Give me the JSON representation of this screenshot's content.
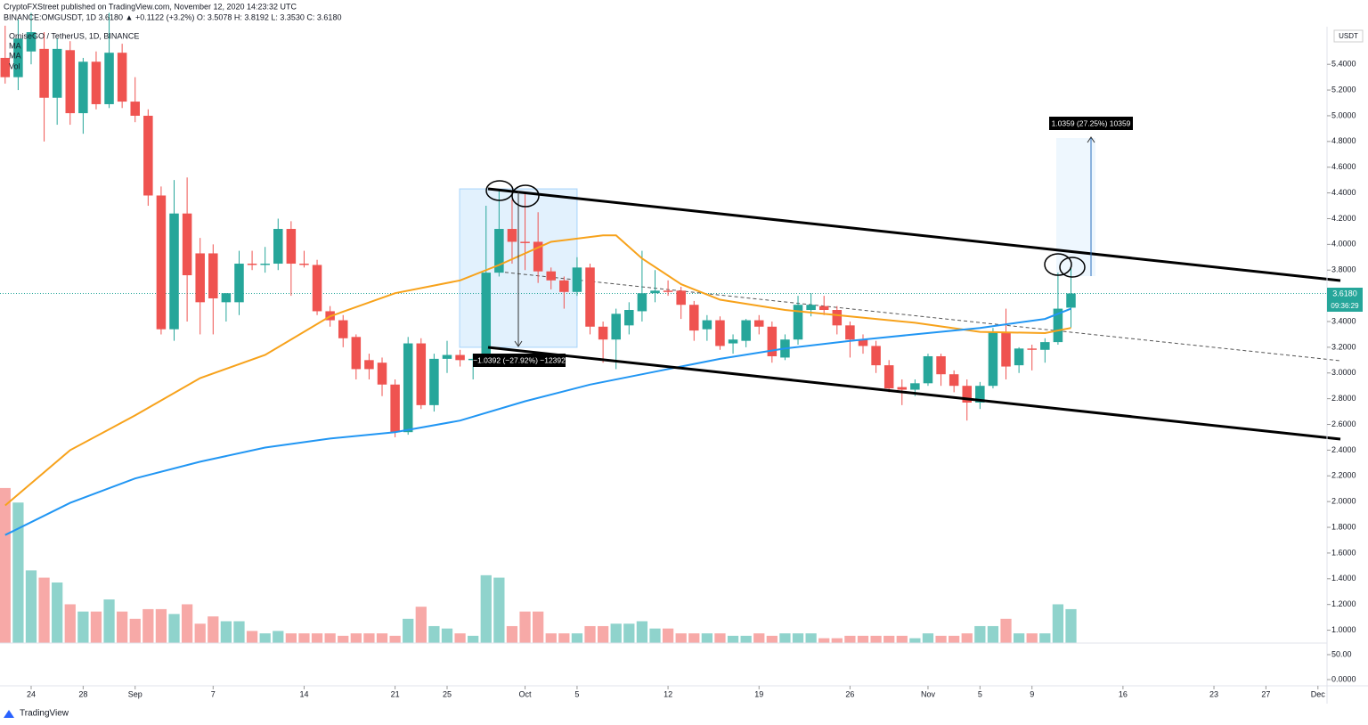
{
  "header": {
    "publisher": "CryptoFXStreet published on TradingView.com, November 12, 2020 14:23:32 UTC",
    "quote": "BINANCE:OMGUSDT, 1D  3.6180  ▲ +0.1122 (+3.2%)  O: 3.5078  H: 3.8192  L: 3.3530  C: 3.6180",
    "currency": "USDT",
    "price_tag": "3.6180",
    "countdown": "09:36:29",
    "brand": "TradingView"
  },
  "chart_data": {
    "type": "candlestick",
    "title": "OmiseGO / TetherUS, 1D, BINANCE",
    "up_color": "#26a69a",
    "down_color": "#ef5350",
    "open": [
      5.45,
      5.3,
      5.5,
      5.52,
      5.14,
      5.51,
      5.02,
      5.42,
      5.09,
      5.49,
      5.11,
      5.0,
      4.38,
      3.34,
      4.24,
      3.93,
      3.93,
      3.55,
      3.55,
      3.85,
      3.84,
      3.85,
      4.12,
      3.85,
      3.84,
      3.48,
      3.41,
      3.28,
      3.1,
      3.08,
      2.91,
      2.54,
      3.23,
      2.75,
      3.11,
      3.14,
      3.1,
      3.11,
      3.78,
      4.12,
      4.02,
      4.02,
      3.79,
      3.72,
      3.63,
      3.82,
      3.36,
      3.26,
      3.37,
      3.48,
      3.62,
      3.64,
      3.64,
      3.53,
      3.34,
      3.41,
      3.23,
      3.25,
      3.41,
      3.36,
      3.12,
      3.26,
      3.49,
      3.52,
      3.49,
      3.37,
      3.26,
      3.21,
      3.06,
      2.89,
      2.87,
      2.92,
      3.13,
      2.99,
      2.9,
      2.77,
      2.9,
      3.32,
      3.06,
      3.19,
      3.18,
      3.24,
      3.5078
    ],
    "high": [
      5.7,
      5.75,
      5.8,
      5.65,
      5.6,
      5.58,
      5.45,
      5.5,
      5.8,
      5.56,
      5.3,
      5.05,
      4.45,
      4.5,
      4.52,
      4.05,
      4.0,
      3.62,
      3.95,
      3.95,
      3.98,
      4.2,
      4.18,
      3.95,
      3.88,
      3.52,
      3.45,
      3.3,
      3.15,
      3.12,
      2.95,
      3.28,
      3.27,
      3.15,
      3.25,
      3.18,
      3.15,
      4.3,
      4.42,
      4.35,
      4.4,
      4.25,
      3.82,
      3.75,
      3.9,
      3.85,
      3.4,
      3.5,
      3.55,
      3.95,
      3.8,
      3.72,
      3.67,
      3.56,
      3.45,
      3.44,
      3.3,
      3.42,
      3.45,
      3.4,
      3.3,
      3.6,
      3.62,
      3.6,
      3.52,
      3.4,
      3.3,
      3.25,
      3.1,
      2.95,
      2.95,
      3.15,
      3.15,
      3.02,
      2.95,
      2.93,
      3.35,
      3.5,
      3.2,
      3.22,
      3.27,
      3.78,
      3.8192
    ],
    "low": [
      5.25,
      5.2,
      5.4,
      4.8,
      4.93,
      4.93,
      4.86,
      5.05,
      5.06,
      5.06,
      4.95,
      4.3,
      3.3,
      3.25,
      3.4,
      3.3,
      3.3,
      3.4,
      3.45,
      3.8,
      3.78,
      3.8,
      3.6,
      3.82,
      3.45,
      3.36,
      3.2,
      2.95,
      2.95,
      2.82,
      2.5,
      2.52,
      2.72,
      2.7,
      3.0,
      3.05,
      2.95,
      3.05,
      3.75,
      3.85,
      3.8,
      3.7,
      3.65,
      3.5,
      3.6,
      3.3,
      3.08,
      3.03,
      3.3,
      3.4,
      3.55,
      3.6,
      3.42,
      3.25,
      3.25,
      3.18,
      3.15,
      3.2,
      3.3,
      3.08,
      3.1,
      3.22,
      3.44,
      3.45,
      3.3,
      3.12,
      3.15,
      3.0,
      2.85,
      2.75,
      2.82,
      2.9,
      2.9,
      2.85,
      2.63,
      2.72,
      2.88,
      2.95,
      3.0,
      3.02,
      3.08,
      3.22,
      3.353
    ],
    "close": [
      5.3,
      5.6,
      5.65,
      5.14,
      5.52,
      5.02,
      5.42,
      5.09,
      5.49,
      5.11,
      5.0,
      4.38,
      3.34,
      4.24,
      3.76,
      3.55,
      3.58,
      3.62,
      3.85,
      3.84,
      3.85,
      4.12,
      3.85,
      3.84,
      3.48,
      3.41,
      3.27,
      3.03,
      3.03,
      2.91,
      2.54,
      3.23,
      2.75,
      3.11,
      3.14,
      3.1,
      3.11,
      3.78,
      4.12,
      4.02,
      4.01,
      3.79,
      3.72,
      3.63,
      3.82,
      3.36,
      3.26,
      3.46,
      3.49,
      3.62,
      3.64,
      3.63,
      3.53,
      3.33,
      3.41,
      3.21,
      3.26,
      3.41,
      3.36,
      3.13,
      3.26,
      3.53,
      3.53,
      3.49,
      3.37,
      3.26,
      3.21,
      3.06,
      2.88,
      2.87,
      2.92,
      3.13,
      2.99,
      2.9,
      2.77,
      2.9,
      3.32,
      3.05,
      3.19,
      3.18,
      3.24,
      3.5,
      3.618
    ],
    "xlim": [
      -0.397,
      101.7
    ],
    "ylim": [
      0.9,
      5.9
    ],
    "xticks": [
      {
        "value": 2,
        "label": "24"
      },
      {
        "value": 6,
        "label": "28"
      },
      {
        "value": 10,
        "label": "Sep"
      },
      {
        "value": 16,
        "label": "7"
      },
      {
        "value": 23,
        "label": "14"
      },
      {
        "value": 30,
        "label": "21"
      },
      {
        "value": 34,
        "label": "25"
      },
      {
        "value": 40,
        "label": "Oct"
      },
      {
        "value": 44,
        "label": "5"
      },
      {
        "value": 51,
        "label": "12"
      },
      {
        "value": 58,
        "label": "19"
      },
      {
        "value": 65,
        "label": "26"
      },
      {
        "value": 71,
        "label": "Nov"
      },
      {
        "value": 75,
        "label": "5"
      },
      {
        "value": 79,
        "label": "9"
      },
      {
        "value": 86,
        "label": "16"
      },
      {
        "value": 93,
        "label": "23"
      },
      {
        "value": 97,
        "label": "27"
      },
      {
        "value": 101,
        "label": "Dec"
      }
    ],
    "yticks": [
      {
        "value": 1.0,
        "label": "1.0000"
      },
      {
        "value": 1.2,
        "label": "1.2000"
      },
      {
        "value": 1.4,
        "label": "1.4000"
      },
      {
        "value": 1.6,
        "label": "1.6000"
      },
      {
        "value": 1.8,
        "label": "1.8000"
      },
      {
        "value": 2.0,
        "label": "2.0000"
      },
      {
        "value": 2.2,
        "label": "2.2000"
      },
      {
        "value": 2.4,
        "label": "2.4000"
      },
      {
        "value": 2.6,
        "label": "2.6000"
      },
      {
        "value": 2.8,
        "label": "2.8000"
      },
      {
        "value": 3.0,
        "label": "3.0000"
      },
      {
        "value": 3.2,
        "label": "3.2000"
      },
      {
        "value": 3.4,
        "label": "3.4000"
      },
      {
        "value": 3.6,
        "label": "3.6000"
      },
      {
        "value": 3.8,
        "label": "3.8000"
      },
      {
        "value": 4.0,
        "label": "4.0000"
      },
      {
        "value": 4.2,
        "label": "4.2000"
      },
      {
        "value": 4.4,
        "label": "4.4000"
      },
      {
        "value": 4.6,
        "label": "4.6000"
      },
      {
        "value": 4.8,
        "label": "4.8000"
      },
      {
        "value": 5.0,
        "label": "5.0000"
      },
      {
        "value": 5.2,
        "label": "5.2000"
      },
      {
        "value": 5.4,
        "label": "5.4000"
      }
    ],
    "series": [
      {
        "name": "MA",
        "color": "#f7a21b",
        "x": [
          0,
          5,
          10,
          15,
          20,
          25,
          30,
          35,
          38,
          42,
          46,
          47,
          49,
          52,
          55,
          60,
          65,
          70,
          75,
          80,
          82
        ],
        "values": [
          1.97,
          2.4,
          2.67,
          2.96,
          3.14,
          3.44,
          3.62,
          3.72,
          3.84,
          4.02,
          4.07,
          4.07,
          3.89,
          3.69,
          3.57,
          3.49,
          3.44,
          3.39,
          3.32,
          3.31,
          3.35
        ]
      },
      {
        "name": "MA",
        "color": "#2196f3",
        "x": [
          0,
          5,
          10,
          15,
          20,
          25,
          30,
          35,
          40,
          45,
          50,
          55,
          60,
          65,
          70,
          75,
          80,
          82
        ],
        "values": [
          1.74,
          1.99,
          2.18,
          2.31,
          2.42,
          2.49,
          2.54,
          2.63,
          2.78,
          2.91,
          3.01,
          3.11,
          3.19,
          3.25,
          3.3,
          3.35,
          3.42,
          3.5
        ]
      }
    ],
    "volume": {
      "name": "Vol",
      "up_color": "#8fd3cc",
      "down_color": "#f7a9a7",
      "ylim": [
        0,
        100
      ],
      "values": [
        64,
        58,
        30,
        27,
        25,
        16,
        13,
        13,
        18,
        13,
        10,
        14,
        14,
        12,
        16,
        8,
        11,
        9,
        9,
        5,
        4,
        5,
        4,
        4,
        4,
        4,
        3,
        4,
        4,
        4,
        3,
        10,
        15,
        7,
        6,
        4,
        3,
        28,
        27,
        7,
        13,
        13,
        4,
        4,
        4,
        7,
        7,
        8,
        8,
        9,
        6,
        6,
        4,
        4,
        4,
        4,
        3,
        3,
        4,
        3,
        4,
        4,
        4,
        2,
        2,
        3,
        3,
        3,
        3,
        3,
        2,
        4,
        3,
        3,
        4,
        7,
        7,
        10,
        4,
        4,
        4,
        16,
        14
      ]
    },
    "lower_pane": {
      "ylim": [
        -12.5,
        73.2
      ],
      "yticks": [
        {
          "value": 50,
          "label": "50.00"
        },
        {
          "value": 0,
          "label": "0.0000"
        }
      ]
    },
    "annotations": {
      "drop": "−1.0392 (−27.92%) −12392",
      "rise": "1.0359 (27.25%) 10359"
    }
  }
}
